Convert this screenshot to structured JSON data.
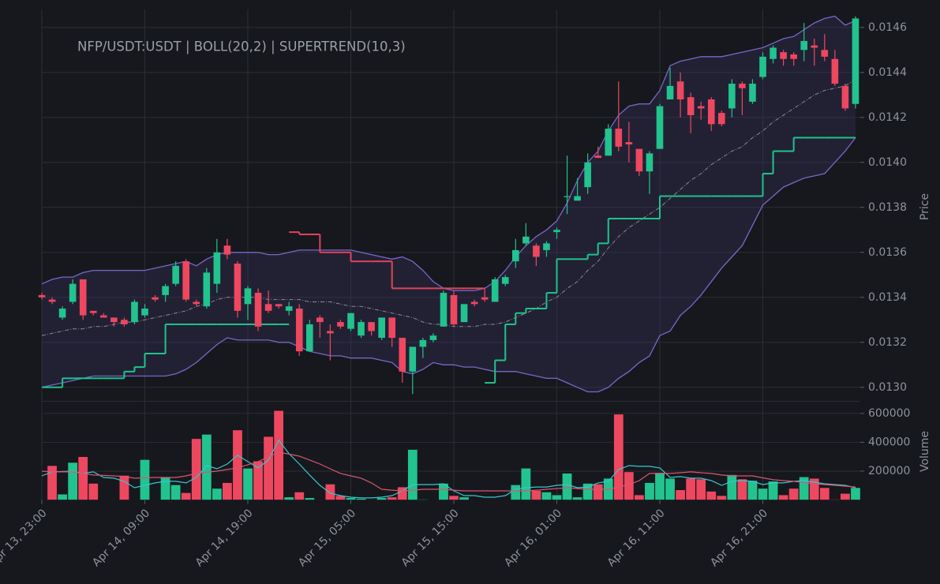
{
  "chart_data": {
    "type": "candlestick",
    "title": "NFP/USDT:USDT | BOLL(20,2) | SUPERTREND(10,3)",
    "ylabel": "Price",
    "grid": true,
    "up_color": "#22c38e",
    "down_color": "#ee4760",
    "categories": [
      "Apr 13, 23:00",
      null,
      null,
      null,
      null,
      null,
      null,
      null,
      null,
      null,
      "Apr 14, 09:00",
      null,
      null,
      null,
      null,
      null,
      null,
      null,
      null,
      null,
      "Apr 14, 19:00",
      null,
      null,
      null,
      null,
      null,
      null,
      null,
      null,
      null,
      "Apr 15, 05:00",
      null,
      null,
      null,
      null,
      null,
      null,
      null,
      null,
      null,
      "Apr 15, 15:00",
      null,
      null,
      null,
      null,
      null,
      null,
      null,
      null,
      null,
      "Apr 16, 01:00",
      null,
      null,
      null,
      null,
      null,
      null,
      null,
      null,
      null,
      "Apr 16, 11:00",
      null,
      null,
      null,
      null,
      null,
      null,
      null,
      null,
      null,
      "Apr 16, 21:00",
      null,
      null,
      null,
      null,
      null,
      null,
      null,
      null,
      null
    ],
    "open": [
      0.01341,
      0.01339,
      0.01331,
      0.01338,
      0.01348,
      0.01334,
      0.01332,
      0.01331,
      0.0133,
      0.01329,
      0.01332,
      0.0134,
      0.01341,
      0.01346,
      0.01356,
      0.01338,
      0.01336,
      0.01346,
      0.01363,
      0.01355,
      0.01337,
      0.01342,
      0.01337,
      0.01337,
      0.01334,
      0.01335,
      0.01316,
      0.01331,
      0.01325,
      0.01329,
      0.01326,
      0.01323,
      0.01329,
      0.01322,
      0.01331,
      0.01322,
      0.01307,
      0.01318,
      0.01321,
      0.01327,
      0.01341,
      0.01329,
      0.01338,
      0.0134,
      0.01338,
      0.01346,
      0.01356,
      0.01364,
      0.01363,
      0.01361,
      0.01369,
      0.01385,
      0.01383,
      0.01389,
      0.01403,
      0.01403,
      0.01415,
      0.01409,
      0.01406,
      0.01396,
      0.01406,
      0.01428,
      0.01436,
      0.01429,
      0.01425,
      0.01428,
      0.01422,
      0.01424,
      0.01435,
      0.01427,
      0.01438,
      0.01446,
      0.01449,
      0.01448,
      0.0145,
      0.01452,
      0.0145,
      0.01446,
      0.01434,
      0.01426
    ],
    "high": [
      0.01342,
      0.0134,
      0.01336,
      0.01348,
      0.01348,
      0.01334,
      0.01333,
      0.01331,
      0.01331,
      0.01339,
      0.01337,
      0.01341,
      0.01346,
      0.01356,
      0.01357,
      0.01339,
      0.01353,
      0.01366,
      0.01366,
      0.01356,
      0.01345,
      0.01344,
      0.01343,
      0.01337,
      0.01338,
      0.01337,
      0.0133,
      0.01332,
      0.01328,
      0.0133,
      0.01333,
      0.0133,
      0.01329,
      0.01331,
      0.01331,
      0.01322,
      0.01318,
      0.01322,
      0.01324,
      0.01343,
      0.01343,
      0.01337,
      0.01339,
      0.01344,
      0.01349,
      0.0135,
      0.01366,
      0.01373,
      0.01364,
      0.01365,
      0.01371,
      0.01403,
      0.01393,
      0.01404,
      0.01407,
      0.01417,
      0.01436,
      0.01418,
      0.01406,
      0.01405,
      0.01426,
      0.01442,
      0.0144,
      0.01431,
      0.01427,
      0.01429,
      0.01423,
      0.01437,
      0.01436,
      0.01437,
      0.01449,
      0.01452,
      0.0145,
      0.01449,
      0.01462,
      0.01455,
      0.01457,
      0.0145,
      0.01435,
      0.01465
    ],
    "low": [
      0.01339,
      0.01337,
      0.0133,
      0.01337,
      0.0133,
      0.01332,
      0.01331,
      0.01327,
      0.01327,
      0.01328,
      0.01331,
      0.01338,
      0.01338,
      0.01345,
      0.01338,
      0.01336,
      0.01335,
      0.01342,
      0.01357,
      0.01331,
      0.0133,
      0.01325,
      0.01333,
      0.01335,
      0.01332,
      0.01314,
      0.01316,
      0.01322,
      0.01312,
      0.01326,
      0.01325,
      0.01322,
      0.01323,
      0.01321,
      0.01318,
      0.01302,
      0.01297,
      0.01313,
      0.0132,
      0.01327,
      0.01327,
      0.01329,
      0.01336,
      0.01338,
      0.01338,
      0.01345,
      0.01353,
      0.01363,
      0.01354,
      0.01358,
      0.01366,
      0.01377,
      0.01383,
      0.01386,
      0.01402,
      0.01403,
      0.01405,
      0.014,
      0.01394,
      0.01386,
      0.01406,
      0.01428,
      0.0142,
      0.01413,
      0.01419,
      0.01414,
      0.01416,
      0.0142,
      0.01421,
      0.01426,
      0.01437,
      0.01444,
      0.01443,
      0.01443,
      0.01445,
      0.01443,
      0.01445,
      0.01434,
      0.01423,
      0.01424
    ],
    "close": [
      0.0134,
      0.01338,
      0.01335,
      0.01346,
      0.01332,
      0.01333,
      0.01331,
      0.01329,
      0.01328,
      0.01338,
      0.01335,
      0.01339,
      0.01345,
      0.01354,
      0.01339,
      0.01337,
      0.01351,
      0.0136,
      0.01359,
      0.01334,
      0.01344,
      0.01327,
      0.01334,
      0.01336,
      0.01336,
      0.01316,
      0.01328,
      0.01329,
      0.01324,
      0.01327,
      0.01333,
      0.01329,
      0.01325,
      0.01331,
      0.01322,
      0.01307,
      0.01318,
      0.01321,
      0.01323,
      0.01342,
      0.01328,
      0.01337,
      0.01337,
      0.01339,
      0.01348,
      0.01349,
      0.01361,
      0.01367,
      0.01358,
      0.01364,
      0.0137,
      0.01385,
      0.01385,
      0.014,
      0.01402,
      0.01415,
      0.01407,
      0.01408,
      0.01396,
      0.01404,
      0.01425,
      0.01434,
      0.01428,
      0.01421,
      0.01424,
      0.01417,
      0.01417,
      0.01435,
      0.01433,
      0.01435,
      0.01447,
      0.01451,
      0.01446,
      0.01446,
      0.01454,
      0.01451,
      0.01447,
      0.01435,
      0.01424,
      0.01464
    ],
    "ylim": [
      0.01295,
      0.01468
    ],
    "yticks": [
      {
        "value": 0.013,
        "label": "0.0130"
      },
      0.0132,
      0.0134,
      0.0136,
      0.0138,
      {
        "value": 0.014,
        "label": "0.0140"
      },
      0.0142,
      0.0144,
      0.0146
    ],
    "bollinger": {
      "color": "#7a66c9",
      "fill": "#3a3560",
      "middle_color": "#8a8a90",
      "upper": [
        0.01346,
        0.01348,
        0.01349,
        0.01349,
        0.01351,
        0.01352,
        0.01352,
        0.01352,
        0.01352,
        0.01352,
        0.01352,
        0.01353,
        0.01354,
        0.01355,
        0.01356,
        0.01354,
        0.01357,
        0.01359,
        0.0136,
        0.0136,
        0.0136,
        0.0136,
        0.01359,
        0.01359,
        0.0136,
        0.01361,
        0.01361,
        0.01361,
        0.01361,
        0.01361,
        0.01361,
        0.0136,
        0.01359,
        0.01358,
        0.01357,
        0.01358,
        0.01356,
        0.01352,
        0.01347,
        0.01344,
        0.01343,
        0.01343,
        0.01343,
        0.01344,
        0.01347,
        0.01352,
        0.01358,
        0.01363,
        0.01367,
        0.0137,
        0.01374,
        0.01382,
        0.01392,
        0.014,
        0.01405,
        0.01414,
        0.01421,
        0.01425,
        0.01426,
        0.01426,
        0.01432,
        0.01443,
        0.01445,
        0.01446,
        0.01447,
        0.01447,
        0.01447,
        0.01448,
        0.01449,
        0.0145,
        0.01451,
        0.01453,
        0.01455,
        0.01456,
        0.01459,
        0.01462,
        0.01464,
        0.01465,
        0.01461,
        0.01463
      ],
      "middle": [
        0.01323,
        0.01324,
        0.01325,
        0.01326,
        0.01326,
        0.01327,
        0.01327,
        0.01328,
        0.01329,
        0.01329,
        0.0133,
        0.01331,
        0.01332,
        0.01333,
        0.01334,
        0.01336,
        0.01337,
        0.01339,
        0.0134,
        0.0134,
        0.0134,
        0.0134,
        0.01339,
        0.01339,
        0.01339,
        0.01339,
        0.01338,
        0.01338,
        0.01338,
        0.01337,
        0.01336,
        0.01336,
        0.01335,
        0.01334,
        0.01333,
        0.01332,
        0.01331,
        0.01329,
        0.01328,
        0.01328,
        0.01327,
        0.01327,
        0.01327,
        0.01328,
        0.01328,
        0.01329,
        0.01331,
        0.01333,
        0.01335,
        0.01338,
        0.0134,
        0.01344,
        0.01347,
        0.01352,
        0.01356,
        0.01362,
        0.01367,
        0.01371,
        0.01374,
        0.01377,
        0.0138,
        0.01384,
        0.01388,
        0.01392,
        0.01395,
        0.01399,
        0.01402,
        0.01405,
        0.01407,
        0.01411,
        0.01414,
        0.01418,
        0.01421,
        0.01424,
        0.01427,
        0.0143,
        0.01432,
        0.01433,
        0.01434,
        0.01437
      ],
      "lower": [
        0.013,
        0.01301,
        0.01302,
        0.01303,
        0.01304,
        0.01305,
        0.01305,
        0.01305,
        0.01305,
        0.01305,
        0.01305,
        0.01305,
        0.01305,
        0.01306,
        0.01308,
        0.01311,
        0.01315,
        0.01319,
        0.01322,
        0.01321,
        0.01321,
        0.01321,
        0.01321,
        0.0132,
        0.0132,
        0.01318,
        0.01316,
        0.01315,
        0.01314,
        0.01314,
        0.01313,
        0.01313,
        0.01313,
        0.01312,
        0.01311,
        0.01307,
        0.01306,
        0.01308,
        0.01311,
        0.0131,
        0.0131,
        0.01309,
        0.01309,
        0.01308,
        0.01307,
        0.01307,
        0.01307,
        0.01306,
        0.01305,
        0.01304,
        0.01304,
        0.01302,
        0.013,
        0.01298,
        0.01298,
        0.013,
        0.01304,
        0.01307,
        0.01311,
        0.01314,
        0.01323,
        0.01325,
        0.01332,
        0.01336,
        0.01341,
        0.01347,
        0.01353,
        0.01358,
        0.01363,
        0.01372,
        0.01381,
        0.01385,
        0.01389,
        0.01391,
        0.01393,
        0.01394,
        0.01395,
        0.014,
        0.01405,
        0.01411
      ]
    },
    "supertrend": {
      "up_color": "#1fc48c",
      "down_color": "#e0445a",
      "up": [
        0.013,
        0.013,
        0.01304,
        0.01304,
        0.01304,
        0.01304,
        0.01304,
        0.01304,
        0.01307,
        0.01309,
        0.01315,
        0.01315,
        0.01328,
        0.01328,
        0.01328,
        0.01328,
        0.01328,
        0.01328,
        0.01328,
        0.01328,
        0.01328,
        0.01328,
        0.01328,
        0.01328,
        null,
        null,
        null,
        null,
        null,
        null,
        null,
        null,
        null,
        null,
        null,
        null,
        null,
        null,
        null,
        null,
        null,
        null,
        null,
        0.01302,
        0.01312,
        0.01328,
        0.01333,
        0.01335,
        0.01335,
        0.01342,
        0.01357,
        0.01357,
        0.01357,
        0.01359,
        0.01364,
        0.01375,
        0.01375,
        0.01375,
        0.01375,
        0.01375,
        0.01385,
        0.01385,
        0.01385,
        0.01385,
        0.01385,
        0.01385,
        0.01385,
        0.01385,
        0.01385,
        0.01385,
        0.01395,
        0.01405,
        0.01405,
        0.01411,
        0.01411,
        0.01411,
        0.01411,
        0.01411,
        0.01411,
        0.01411
      ],
      "down": [
        null,
        null,
        null,
        null,
        null,
        null,
        null,
        null,
        null,
        null,
        null,
        null,
        null,
        null,
        null,
        null,
        null,
        null,
        null,
        null,
        null,
        null,
        null,
        null,
        0.01369,
        0.01368,
        0.01368,
        0.0136,
        0.0136,
        0.0136,
        0.01356,
        0.01356,
        0.01356,
        0.01356,
        0.01344,
        0.01344,
        0.01344,
        0.01344,
        0.01344,
        0.01344,
        0.01344,
        0.01344,
        0.01344,
        null,
        null,
        null,
        null,
        null,
        null,
        null,
        null,
        null,
        null,
        null,
        null,
        null,
        null,
        null,
        null,
        null,
        null,
        null,
        null,
        null,
        null,
        null,
        null,
        null,
        null,
        null,
        null,
        null,
        null,
        null,
        null,
        null,
        null,
        null,
        null,
        null
      ]
    },
    "volume": {
      "ylabel": "Volume",
      "ylim": [
        0,
        665000
      ],
      "yticks": [
        200000,
        400000,
        600000
      ],
      "values": [
        0,
        238000,
        40000,
        260000,
        300000,
        115000,
        0,
        0,
        170000,
        0,
        280000,
        0,
        155000,
        105000,
        50000,
        425000,
        455000,
        80000,
        120000,
        485000,
        220000,
        270000,
        440000,
        620000,
        20000,
        55000,
        15000,
        0,
        110000,
        30000,
        15000,
        10000,
        0,
        15000,
        20000,
        90000,
        350000,
        5000,
        0,
        115000,
        30000,
        20000,
        0,
        0,
        0,
        0,
        105000,
        220000,
        65000,
        55000,
        35000,
        185000,
        20000,
        115000,
        110000,
        150000,
        595000,
        195000,
        35000,
        120000,
        190000,
        150000,
        70000,
        150000,
        145000,
        60000,
        30000,
        175000,
        145000,
        135000,
        80000,
        130000,
        35000,
        80000,
        160000,
        150000,
        85000,
        5000,
        45000,
        85000
      ],
      "ma": [
        {
          "color": "#38c6d2",
          "values": [
            167000,
            195000,
            197000,
            200000,
            184000,
            195000,
            156000,
            151000,
            129000,
            85000,
            101000,
            118000,
            129000,
            129000,
            118000,
            156000,
            238000,
            216000,
            249000,
            310000,
            266000,
            222000,
            277000,
            414000,
            321000,
            249000,
            173000,
            101000,
            47000,
            30000,
            19000,
            14000,
            14000,
            19000,
            30000,
            63000,
            107000,
            107000,
            107000,
            112000,
            63000,
            30000,
            30000,
            19000,
            19000,
            30000,
            74000,
            85000,
            90000,
            90000,
            101000,
            107000,
            85000,
            90000,
            118000,
            129000,
            211000,
            238000,
            233000,
            233000,
            222000,
            156000,
            162000,
            151000,
            151000,
            134000,
            101000,
            129000,
            134000,
            129000,
            107000,
            118000,
            118000,
            129000,
            134000,
            123000,
            112000,
            107000,
            101000,
            85000
          ]
        },
        {
          "color": "#d9566f",
          "values": [
            200000,
            195000,
            195000,
            195000,
            184000,
            173000,
            170000,
            167000,
            162000,
            151000,
            153000,
            156000,
            156000,
            156000,
            167000,
            184000,
            192000,
            200000,
            211000,
            222000,
            244000,
            266000,
            299000,
            331000,
            318000,
            304000,
            277000,
            249000,
            216000,
            184000,
            167000,
            151000,
            118000,
            74000,
            68000,
            63000,
            68000,
            74000,
            74000,
            74000,
            68000,
            63000,
            63000,
            63000,
            63000,
            63000,
            63000,
            63000,
            68000,
            74000,
            79000,
            85000,
            79000,
            74000,
            74000,
            74000,
            90000,
            107000,
            134000,
            184000,
            184000,
            184000,
            189000,
            195000,
            189000,
            184000,
            173000,
            167000,
            167000,
            167000,
            153000,
            140000,
            134000,
            129000,
            121000,
            112000,
            107000,
            101000,
            96000,
            90000
          ]
        }
      ]
    }
  }
}
